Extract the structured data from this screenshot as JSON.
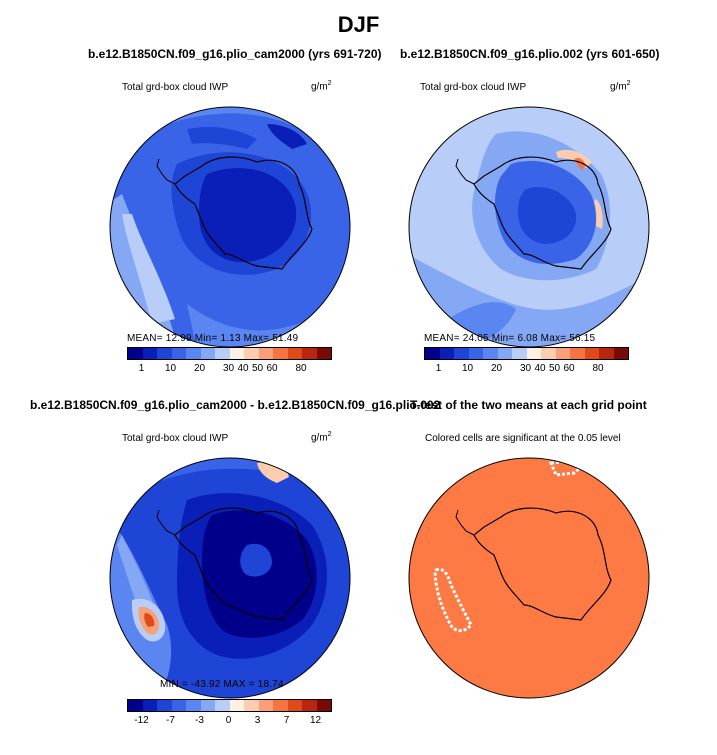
{
  "title": "DJF",
  "colors": {
    "scale": [
      "#00008b",
      "#0a1fb8",
      "#1f45d6",
      "#3a64e8",
      "#5b85f0",
      "#85a8f5",
      "#b8cdf8",
      "#fdf0e4",
      "#fcccb0",
      "#f9a07a",
      "#f47442",
      "#e04a1a",
      "#b8260d",
      "#7a0a06"
    ],
    "ttest": "#fe7a45",
    "coast": "#000000"
  },
  "panels": [
    {
      "id": "p1",
      "title": "b.e12.B1850CN.f09_g16.plio_cam2000 (yrs 691-720)",
      "left_label": "Total grd-box cloud IWP",
      "units": "g/m",
      "units_sup": "2",
      "stats_line": "MEAN=   12.99   Min=    1.13   Max=   51.49",
      "colorbar_ticks": [
        "1",
        "10",
        "20",
        "30",
        "40",
        "50",
        "60",
        "80"
      ]
    },
    {
      "id": "p2",
      "title": "b.e12.B1850CN.f09_g16.plio.002 (yrs 601-650)",
      "left_label": "Total grd-box cloud IWP",
      "units": "g/m",
      "units_sup": "2",
      "stats_line": "MEAN=   24.05   Min=    6.08   Max=   56.15",
      "colorbar_ticks": [
        "1",
        "10",
        "20",
        "30",
        "40",
        "50",
        "60",
        "80"
      ]
    },
    {
      "id": "p3",
      "title": "b.e12.B1850CN.f09_g16.plio_cam2000 - b.e12.B1850CN.f09_g16.plio.002",
      "left_label": "Total grd-box cloud IWP",
      "units": "g/m",
      "units_sup": "2",
      "stats_line": "MIN = -43.92  MAX =   18.74",
      "colorbar_ticks": [
        "-12",
        "-7",
        "-3",
        "0",
        "3",
        "7",
        "12"
      ]
    },
    {
      "id": "p4",
      "title": "T-test of the two means at each grid point",
      "left_label": "Colored cells are significant at the 0.05 level"
    }
  ],
  "chart_data": [
    {
      "type": "heatmap",
      "title": "b.e12.B1850CN.f09_g16.plio_cam2000 (yrs 691-720)",
      "variable": "Total grd-box cloud IWP",
      "units": "g/m2",
      "projection": "south polar stereographic",
      "stats": {
        "mean": 12.99,
        "min": 1.13,
        "max": 51.49
      },
      "contour_levels": [
        1,
        5,
        10,
        15,
        20,
        25,
        30,
        35,
        40,
        45,
        50,
        60,
        70,
        80
      ]
    },
    {
      "type": "heatmap",
      "title": "b.e12.B1850CN.f09_g16.plio.002 (yrs 601-650)",
      "variable": "Total grd-box cloud IWP",
      "units": "g/m2",
      "projection": "south polar stereographic",
      "stats": {
        "mean": 24.05,
        "min": 6.08,
        "max": 56.15
      },
      "contour_levels": [
        1,
        5,
        10,
        15,
        20,
        25,
        30,
        35,
        40,
        45,
        50,
        60,
        70,
        80
      ]
    },
    {
      "type": "heatmap",
      "title": "b.e12.B1850CN.f09_g16.plio_cam2000 - b.e12.B1850CN.f09_g16.plio.002",
      "variable": "Total grd-box cloud IWP",
      "units": "g/m2",
      "projection": "south polar stereographic",
      "stats": {
        "min": -43.92,
        "max": 18.74
      },
      "contour_levels": [
        -15,
        -12,
        -10,
        -7,
        -5,
        -3,
        -1,
        0,
        1,
        3,
        5,
        7,
        10,
        12,
        15
      ]
    },
    {
      "type": "heatmap",
      "title": "T-test of the two means at each grid point",
      "subtitle": "Colored cells are significant at the 0.05 level",
      "projection": "south polar stereographic",
      "significance_level": 0.05
    }
  ]
}
